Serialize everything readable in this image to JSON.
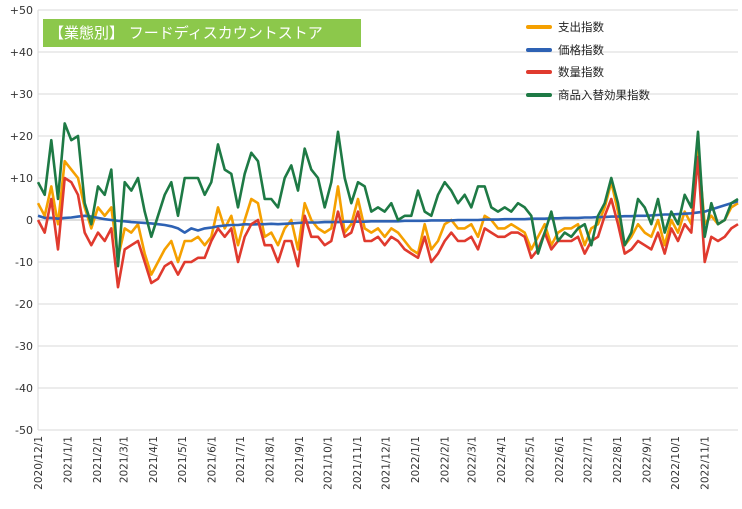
{
  "chart_data": {
    "type": "line",
    "title": "【業態別】 フードディスカウントストア",
    "xlabel": "",
    "ylabel": "",
    "ylim": [
      -50,
      50
    ],
    "y_ticks": [
      "+50",
      "+40",
      "+30",
      "+20",
      "+10",
      "0",
      "-10",
      "-20",
      "-30",
      "-40",
      "-50"
    ],
    "grid": true,
    "legend_position": "top-right",
    "x_tick_labels": [
      "2020/12/1",
      "2021/1/1",
      "2021/2/1",
      "2021/3/1",
      "2021/4/1",
      "2021/5/1",
      "2021/6/1",
      "2021/7/1",
      "2021/8/1",
      "2021/9/1",
      "2021/10/1",
      "2021/11/1",
      "2021/12/1",
      "2022/1/1",
      "2022/2/1",
      "2022/3/1",
      "2022/4/1",
      "2022/5/1",
      "2022/6/1",
      "2022/7/1",
      "2022/8/1",
      "2022/9/1",
      "2022/10/1",
      "2022/11/1"
    ],
    "x_start": "2020/12/1",
    "x_interval": "weekly",
    "series": [
      {
        "name": "支出指数",
        "color": "#f5a000",
        "values": [
          4,
          1,
          8,
          -1,
          14,
          12,
          10,
          3,
          -2,
          3,
          1,
          3,
          -9,
          -2,
          -3,
          -1,
          -8,
          -13,
          -10,
          -7,
          -5,
          -10,
          -5,
          -5,
          -4,
          -6,
          -4,
          3,
          -2,
          1,
          -6,
          0,
          5,
          4,
          -4,
          -3,
          -6,
          -2,
          0,
          -7,
          4,
          0,
          -2,
          -3,
          -2,
          8,
          -3,
          -1,
          5,
          -2,
          -3,
          -2,
          -4,
          -2,
          -3,
          -5,
          -7,
          -8,
          -1,
          -7,
          -5,
          -1,
          0,
          -2,
          -2,
          -1,
          -4,
          1,
          0,
          -2,
          -2,
          -1,
          -2,
          -3,
          -7,
          -4,
          -1,
          -6,
          -3,
          -2,
          -2,
          -1,
          -6,
          -2,
          -1,
          3,
          9,
          2,
          -6,
          -4,
          -1,
          -3,
          -4,
          0,
          -6,
          0,
          -3,
          2,
          -1,
          17,
          -1,
          1,
          -1,
          0,
          3,
          4
        ]
      },
      {
        "name": "価格指数",
        "color": "#2e62b4",
        "values": [
          1,
          0.5,
          0.5,
          0.3,
          0.5,
          0.6,
          0.8,
          1,
          0.8,
          0.5,
          0.2,
          0,
          -0.2,
          -0.3,
          -0.5,
          -0.6,
          -0.7,
          -0.8,
          -1,
          -1.2,
          -1.5,
          -2,
          -3,
          -2,
          -2.5,
          -2,
          -1.8,
          -1.5,
          -1.3,
          -1.2,
          -1.2,
          -1,
          -1.1,
          -1,
          -1,
          -0.9,
          -1,
          -0.9,
          -0.8,
          -0.7,
          -0.6,
          -0.6,
          -0.6,
          -0.5,
          -0.5,
          -0.5,
          -0.4,
          -0.4,
          -0.4,
          -0.4,
          -0.3,
          -0.3,
          -0.3,
          -0.3,
          -0.3,
          -0.2,
          -0.2,
          -0.2,
          -0.2,
          -0.1,
          -0.1,
          -0.1,
          -0.1,
          0,
          0,
          0,
          0,
          0.1,
          0.1,
          0.1,
          0.2,
          0.2,
          0.2,
          0.2,
          0.3,
          0.3,
          0.3,
          0.4,
          0.4,
          0.5,
          0.5,
          0.5,
          0.6,
          0.6,
          0.7,
          0.7,
          0.8,
          0.8,
          0.9,
          0.9,
          1,
          1,
          1.1,
          1.2,
          1.3,
          1.3,
          1.4,
          1.5,
          1.6,
          1.8,
          2,
          2.5,
          3,
          3.5,
          4,
          4.5
        ]
      },
      {
        "name": "数量指数",
        "color": "#e03a2e",
        "values": [
          0,
          -3,
          5,
          -7,
          10,
          9,
          6,
          -3,
          -6,
          -3,
          -5,
          -2,
          -16,
          -7,
          -6,
          -5,
          -10,
          -15,
          -14,
          -11,
          -10,
          -13,
          -10,
          -10,
          -9,
          -9,
          -5,
          -2,
          -4,
          -2,
          -10,
          -4,
          -1,
          0,
          -6,
          -6,
          -10,
          -5,
          -5,
          -11,
          1,
          -4,
          -4,
          -6,
          -5,
          2,
          -4,
          -3,
          2,
          -5,
          -5,
          -4,
          -6,
          -4,
          -5,
          -7,
          -8,
          -9,
          -4,
          -10,
          -8,
          -5,
          -3,
          -5,
          -5,
          -4,
          -7,
          -2,
          -3,
          -4,
          -4,
          -3,
          -3,
          -4,
          -9,
          -7,
          -3,
          -7,
          -5,
          -5,
          -5,
          -4,
          -8,
          -5,
          -4,
          1,
          5,
          -1,
          -8,
          -7,
          -5,
          -6,
          -7,
          -3,
          -8,
          -2,
          -5,
          -1,
          -3,
          15,
          -10,
          -4,
          -5,
          -4,
          -2,
          -1
        ]
      },
      {
        "name": "商品入替効果指数",
        "color": "#1e7a45",
        "values": [
          9,
          6,
          19,
          5,
          23,
          19,
          20,
          4,
          -1,
          8,
          6,
          12,
          -11,
          9,
          7,
          10,
          2,
          -4,
          1,
          6,
          9,
          1,
          10,
          10,
          10,
          6,
          9,
          18,
          12,
          11,
          3,
          11,
          16,
          14,
          5,
          5,
          3,
          10,
          13,
          7,
          17,
          12,
          10,
          3,
          9,
          21,
          10,
          4,
          9,
          8,
          2,
          3,
          2,
          4,
          0,
          1,
          1,
          7,
          2,
          1,
          6,
          9,
          7,
          4,
          6,
          3,
          8,
          8,
          3,
          2,
          3,
          2,
          4,
          3,
          1,
          -8,
          -3,
          2,
          -5,
          -3,
          -4,
          -2,
          -1,
          -6,
          1,
          4,
          10,
          4,
          -6,
          -3,
          5,
          3,
          -1,
          5,
          -3,
          2,
          -1,
          6,
          3,
          21,
          -4,
          4,
          -1,
          0,
          4,
          5
        ]
      }
    ]
  }
}
